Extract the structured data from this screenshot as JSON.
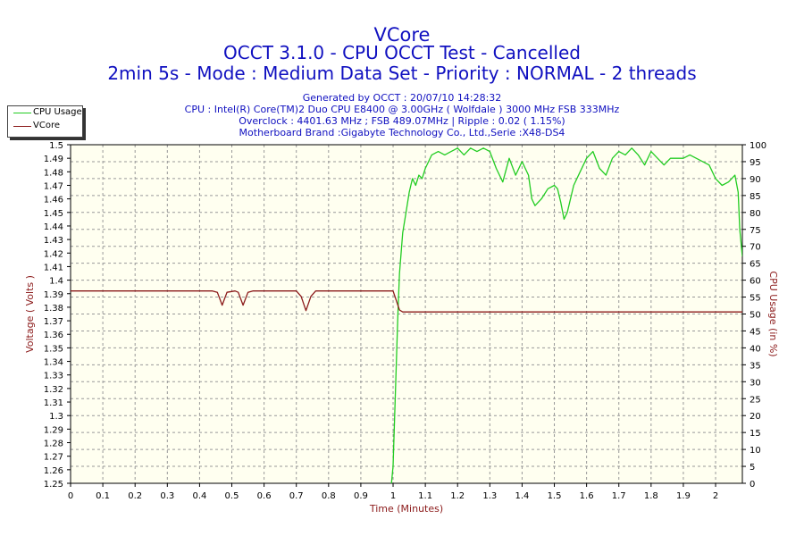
{
  "chart_data": {
    "type": "line",
    "title": "VCore",
    "subtitle_lines": [
      "OCCT 3.1.0 - CPU OCCT Test - Cancelled",
      "2min 5s - Mode : Medium Data Set - Priority : NORMAL - 2 threads"
    ],
    "info_lines": [
      "Generated by OCCT : 20/07/10 14:28:32",
      "CPU : Intel(R) Core(TM)2 Duo CPU E8400 @ 3.00GHz ( Wolfdale ) 3000 MHz FSB 333MHz",
      "Overclock : 4401.63 MHz ; FSB 489.07MHz | Ripple : 0.02 ( 1.15%)",
      "Motherboard Brand :Gigabyte Technology Co., Ltd.,Serie :X48-DS4"
    ],
    "xlabel": "Time (Minutes)",
    "ylabel_left": "Voltage ( Volts )",
    "ylabel_right": "CPU Usage (in %)",
    "xlim": [
      0,
      2.083
    ],
    "ylim_left": [
      1.25,
      1.5
    ],
    "ylim_right": [
      0,
      100
    ],
    "x_ticks": [
      "0",
      "0.1",
      "0.2",
      "0.3",
      "0.4",
      "0.5",
      "0.6",
      "0.7",
      "0.8",
      "0.9",
      "1",
      "1.1",
      "1.2",
      "1.3",
      "1.4",
      "1.5",
      "1.6",
      "1.7",
      "1.8",
      "1.9",
      "2"
    ],
    "y_left_ticks": [
      "1.25",
      "1.26",
      "1.27",
      "1.28",
      "1.29",
      "1.3",
      "1.31",
      "1.32",
      "1.33",
      "1.34",
      "1.35",
      "1.36",
      "1.37",
      "1.38",
      "1.39",
      "1.4",
      "1.41",
      "1.42",
      "1.43",
      "1.44",
      "1.45",
      "1.46",
      "1.47",
      "1.48",
      "1.49",
      "1.5"
    ],
    "y_right_ticks": [
      "0",
      "5",
      "10",
      "15",
      "20",
      "25",
      "30",
      "35",
      "40",
      "45",
      "50",
      "55",
      "60",
      "65",
      "70",
      "75",
      "80",
      "85",
      "90",
      "95",
      "100"
    ],
    "grid": true,
    "legend_position": "top-left",
    "colors": {
      "cpu": "#22cc22",
      "vcore": "#8b1a1a",
      "plot_bg": "#fffff0",
      "grid": "#999999",
      "text_blue": "#1010c0"
    },
    "series": [
      {
        "name": "CPU Usage",
        "axis": "right",
        "color": "#22cc22",
        "points": [
          [
            0.995,
            0
          ],
          [
            1.0,
            5
          ],
          [
            1.005,
            20
          ],
          [
            1.01,
            35
          ],
          [
            1.015,
            50
          ],
          [
            1.02,
            62
          ],
          [
            1.025,
            68
          ],
          [
            1.03,
            74
          ],
          [
            1.04,
            80
          ],
          [
            1.05,
            86
          ],
          [
            1.06,
            90
          ],
          [
            1.07,
            88
          ],
          [
            1.08,
            91
          ],
          [
            1.09,
            90
          ],
          [
            1.1,
            93
          ],
          [
            1.12,
            97
          ],
          [
            1.14,
            98
          ],
          [
            1.16,
            97
          ],
          [
            1.18,
            98
          ],
          [
            1.2,
            99
          ],
          [
            1.22,
            97
          ],
          [
            1.24,
            99
          ],
          [
            1.26,
            98
          ],
          [
            1.28,
            99
          ],
          [
            1.3,
            98
          ],
          [
            1.32,
            93
          ],
          [
            1.34,
            89
          ],
          [
            1.36,
            96
          ],
          [
            1.38,
            91
          ],
          [
            1.4,
            95
          ],
          [
            1.42,
            91
          ],
          [
            1.43,
            84
          ],
          [
            1.44,
            82
          ],
          [
            1.46,
            84
          ],
          [
            1.48,
            87
          ],
          [
            1.5,
            88
          ],
          [
            1.51,
            87
          ],
          [
            1.52,
            83
          ],
          [
            1.53,
            78
          ],
          [
            1.54,
            80
          ],
          [
            1.56,
            88
          ],
          [
            1.58,
            92
          ],
          [
            1.6,
            96
          ],
          [
            1.62,
            98
          ],
          [
            1.64,
            93
          ],
          [
            1.66,
            91
          ],
          [
            1.68,
            96
          ],
          [
            1.7,
            98
          ],
          [
            1.72,
            97
          ],
          [
            1.74,
            99
          ],
          [
            1.76,
            97
          ],
          [
            1.78,
            94
          ],
          [
            1.8,
            98
          ],
          [
            1.82,
            96
          ],
          [
            1.84,
            94
          ],
          [
            1.86,
            96
          ],
          [
            1.88,
            96
          ],
          [
            1.9,
            96
          ],
          [
            1.92,
            97
          ],
          [
            1.94,
            96
          ],
          [
            1.96,
            95
          ],
          [
            1.98,
            94
          ],
          [
            2.0,
            90
          ],
          [
            2.02,
            88
          ],
          [
            2.04,
            89
          ],
          [
            2.06,
            91
          ],
          [
            2.07,
            86
          ],
          [
            2.075,
            75
          ],
          [
            2.083,
            67
          ]
        ]
      },
      {
        "name": "VCore",
        "axis": "left",
        "color": "#8b1a1a",
        "points": [
          [
            0,
            1.392
          ],
          [
            0.44,
            1.392
          ],
          [
            0.455,
            1.391
          ],
          [
            0.47,
            1.3815
          ],
          [
            0.485,
            1.391
          ],
          [
            0.51,
            1.392
          ],
          [
            0.52,
            1.391
          ],
          [
            0.535,
            1.3815
          ],
          [
            0.55,
            1.391
          ],
          [
            0.565,
            1.392
          ],
          [
            0.7,
            1.392
          ],
          [
            0.715,
            1.388
          ],
          [
            0.73,
            1.3775
          ],
          [
            0.745,
            1.388
          ],
          [
            0.76,
            1.392
          ],
          [
            0.99,
            1.392
          ],
          [
            1.0,
            1.392
          ],
          [
            1.01,
            1.385
          ],
          [
            1.02,
            1.378
          ],
          [
            1.03,
            1.3765
          ],
          [
            1.1,
            1.3765
          ],
          [
            2.083,
            1.3765
          ]
        ]
      }
    ]
  }
}
